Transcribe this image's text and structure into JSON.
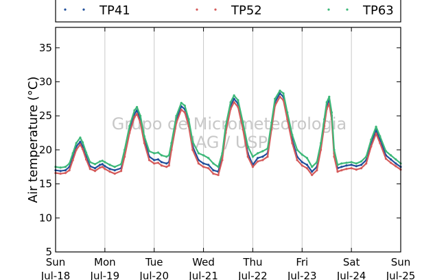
{
  "chart_data": {
    "type": "line",
    "title": "",
    "xlabel": "",
    "ylabel": "Air temperature (°C)",
    "ylim": [
      5,
      38
    ],
    "xlim": [
      0,
      7
    ],
    "grid": "vertical-only",
    "legend": "top",
    "yticks": [
      5,
      10,
      15,
      20,
      25,
      30,
      35
    ],
    "xticks": [
      {
        "x": 0,
        "day": "Sun",
        "date": "Jul-18"
      },
      {
        "x": 1,
        "day": "Mon",
        "date": "Jul-19"
      },
      {
        "x": 2,
        "day": "Tue",
        "date": "Jul-20"
      },
      {
        "x": 3,
        "day": "Wed",
        "date": "Jul-21"
      },
      {
        "x": 4,
        "day": "Thu",
        "date": "Jul-22"
      },
      {
        "x": 5,
        "day": "Fri",
        "date": "Jul-23"
      },
      {
        "x": 6,
        "day": "Sat",
        "date": "Jul-24"
      },
      {
        "x": 7,
        "day": "Sun",
        "date": "Jul-25"
      }
    ],
    "watermark": [
      "Grupo de Micrometeorologia",
      "IAG / USP"
    ],
    "series": [
      {
        "name": "TP41",
        "color": "#1f4e9a",
        "points": [
          [
            0,
            17.0
          ],
          [
            0.1,
            16.9
          ],
          [
            0.2,
            17.0
          ],
          [
            0.28,
            17.5
          ],
          [
            0.35,
            19.0
          ],
          [
            0.42,
            20.5
          ],
          [
            0.5,
            21.2
          ],
          [
            0.55,
            20.5
          ],
          [
            0.62,
            19.0
          ],
          [
            0.7,
            17.6
          ],
          [
            0.8,
            17.3
          ],
          [
            0.9,
            17.8
          ],
          [
            0.95,
            17.9
          ],
          [
            1.0,
            17.6
          ],
          [
            1.1,
            17.2
          ],
          [
            1.2,
            17.0
          ],
          [
            1.33,
            17.3
          ],
          [
            1.4,
            19.5
          ],
          [
            1.5,
            23.0
          ],
          [
            1.6,
            25.3
          ],
          [
            1.65,
            25.8
          ],
          [
            1.72,
            24.5
          ],
          [
            1.8,
            21.5
          ],
          [
            1.9,
            19.0
          ],
          [
            2.0,
            18.5
          ],
          [
            2.08,
            18.6
          ],
          [
            2.15,
            18.2
          ],
          [
            2.25,
            18.0
          ],
          [
            2.3,
            18.2
          ],
          [
            2.35,
            20.5
          ],
          [
            2.45,
            24.5
          ],
          [
            2.55,
            26.4
          ],
          [
            2.62,
            26.0
          ],
          [
            2.7,
            24.0
          ],
          [
            2.78,
            20.5
          ],
          [
            2.9,
            18.5
          ],
          [
            3.0,
            18.0
          ],
          [
            3.1,
            17.8
          ],
          [
            3.2,
            17.0
          ],
          [
            3.3,
            16.8
          ],
          [
            3.38,
            19.0
          ],
          [
            3.45,
            23.0
          ],
          [
            3.55,
            26.5
          ],
          [
            3.62,
            27.5
          ],
          [
            3.7,
            26.8
          ],
          [
            3.8,
            23.5
          ],
          [
            3.9,
            19.5
          ],
          [
            4.0,
            17.8
          ],
          [
            4.1,
            18.8
          ],
          [
            4.2,
            19.0
          ],
          [
            4.3,
            19.5
          ],
          [
            4.38,
            23.5
          ],
          [
            4.45,
            27.0
          ],
          [
            4.55,
            28.3
          ],
          [
            4.62,
            27.8
          ],
          [
            4.7,
            25.0
          ],
          [
            4.8,
            21.5
          ],
          [
            4.9,
            19.0
          ],
          [
            5.0,
            18.2
          ],
          [
            5.1,
            17.8
          ],
          [
            5.2,
            16.8
          ],
          [
            5.3,
            17.5
          ],
          [
            5.38,
            20.5
          ],
          [
            5.45,
            24.0
          ],
          [
            5.5,
            26.5
          ],
          [
            5.55,
            27.3
          ],
          [
            5.6,
            25.0
          ],
          [
            5.65,
            19.5
          ],
          [
            5.72,
            17.3
          ],
          [
            5.8,
            17.5
          ],
          [
            5.9,
            17.7
          ],
          [
            6.0,
            17.8
          ],
          [
            6.1,
            17.6
          ],
          [
            6.2,
            17.8
          ],
          [
            6.3,
            18.5
          ],
          [
            6.4,
            21.0
          ],
          [
            6.5,
            22.9
          ],
          [
            6.58,
            21.5
          ],
          [
            6.7,
            19.2
          ],
          [
            6.8,
            18.6
          ],
          [
            6.9,
            18.0
          ],
          [
            7.0,
            17.5
          ]
        ]
      },
      {
        "name": "TP52",
        "color": "#d45a5a",
        "points": [
          [
            0,
            16.6
          ],
          [
            0.1,
            16.5
          ],
          [
            0.2,
            16.6
          ],
          [
            0.28,
            17.0
          ],
          [
            0.35,
            18.5
          ],
          [
            0.42,
            20.0
          ],
          [
            0.5,
            20.8
          ],
          [
            0.55,
            20.1
          ],
          [
            0.62,
            18.6
          ],
          [
            0.7,
            17.2
          ],
          [
            0.8,
            16.9
          ],
          [
            0.9,
            17.4
          ],
          [
            0.95,
            17.5
          ],
          [
            1.0,
            17.2
          ],
          [
            1.1,
            16.8
          ],
          [
            1.2,
            16.5
          ],
          [
            1.33,
            16.9
          ],
          [
            1.4,
            19.0
          ],
          [
            1.5,
            22.5
          ],
          [
            1.6,
            24.8
          ],
          [
            1.65,
            25.3
          ],
          [
            1.72,
            24.0
          ],
          [
            1.8,
            21.0
          ],
          [
            1.9,
            18.5
          ],
          [
            2.0,
            18.0
          ],
          [
            2.08,
            18.1
          ],
          [
            2.15,
            17.7
          ],
          [
            2.25,
            17.5
          ],
          [
            2.3,
            17.7
          ],
          [
            2.35,
            20.0
          ],
          [
            2.45,
            24.0
          ],
          [
            2.55,
            25.9
          ],
          [
            2.62,
            25.5
          ],
          [
            2.7,
            23.5
          ],
          [
            2.78,
            20.0
          ],
          [
            2.9,
            18.0
          ],
          [
            3.0,
            17.5
          ],
          [
            3.1,
            17.3
          ],
          [
            3.2,
            16.5
          ],
          [
            3.3,
            16.3
          ],
          [
            3.38,
            18.5
          ],
          [
            3.45,
            22.5
          ],
          [
            3.55,
            26.0
          ],
          [
            3.62,
            27.0
          ],
          [
            3.7,
            26.3
          ],
          [
            3.8,
            23.0
          ],
          [
            3.9,
            19.0
          ],
          [
            4.0,
            17.5
          ],
          [
            4.1,
            18.3
          ],
          [
            4.2,
            18.5
          ],
          [
            4.3,
            19.0
          ],
          [
            4.38,
            23.0
          ],
          [
            4.45,
            26.5
          ],
          [
            4.55,
            27.8
          ],
          [
            4.62,
            27.3
          ],
          [
            4.7,
            24.5
          ],
          [
            4.8,
            21.0
          ],
          [
            4.9,
            18.5
          ],
          [
            5.0,
            17.7
          ],
          [
            5.1,
            17.3
          ],
          [
            5.2,
            16.3
          ],
          [
            5.3,
            17.0
          ],
          [
            5.38,
            20.0
          ],
          [
            5.45,
            23.5
          ],
          [
            5.5,
            26.0
          ],
          [
            5.55,
            26.8
          ],
          [
            5.6,
            24.5
          ],
          [
            5.65,
            19.0
          ],
          [
            5.72,
            16.8
          ],
          [
            5.8,
            17.0
          ],
          [
            5.9,
            17.2
          ],
          [
            6.0,
            17.3
          ],
          [
            6.1,
            17.1
          ],
          [
            6.2,
            17.3
          ],
          [
            6.3,
            18.0
          ],
          [
            6.4,
            20.5
          ],
          [
            6.5,
            22.4
          ],
          [
            6.58,
            21.0
          ],
          [
            6.7,
            18.7
          ],
          [
            6.8,
            18.1
          ],
          [
            6.9,
            17.6
          ],
          [
            7.0,
            17.1
          ]
        ]
      },
      {
        "name": "TP63",
        "color": "#3cb878",
        "points": [
          [
            0,
            17.5
          ],
          [
            0.1,
            17.4
          ],
          [
            0.2,
            17.5
          ],
          [
            0.28,
            18.0
          ],
          [
            0.35,
            19.5
          ],
          [
            0.42,
            21.0
          ],
          [
            0.5,
            21.8
          ],
          [
            0.55,
            21.1
          ],
          [
            0.62,
            19.6
          ],
          [
            0.7,
            18.2
          ],
          [
            0.8,
            17.9
          ],
          [
            0.9,
            18.3
          ],
          [
            0.95,
            18.4
          ],
          [
            1.0,
            18.2
          ],
          [
            1.1,
            17.8
          ],
          [
            1.2,
            17.5
          ],
          [
            1.33,
            17.9
          ],
          [
            1.4,
            20.0
          ],
          [
            1.5,
            23.5
          ],
          [
            1.6,
            25.8
          ],
          [
            1.65,
            26.3
          ],
          [
            1.72,
            25.0
          ],
          [
            1.8,
            22.0
          ],
          [
            1.9,
            19.8
          ],
          [
            2.0,
            19.5
          ],
          [
            2.08,
            19.6
          ],
          [
            2.15,
            19.2
          ],
          [
            2.25,
            19.0
          ],
          [
            2.3,
            19.2
          ],
          [
            2.35,
            21.0
          ],
          [
            2.45,
            25.0
          ],
          [
            2.55,
            26.9
          ],
          [
            2.62,
            26.5
          ],
          [
            2.7,
            24.5
          ],
          [
            2.78,
            21.2
          ],
          [
            2.9,
            19.5
          ],
          [
            3.0,
            19.2
          ],
          [
            3.1,
            18.8
          ],
          [
            3.2,
            18.0
          ],
          [
            3.3,
            17.5
          ],
          [
            3.38,
            19.5
          ],
          [
            3.45,
            23.5
          ],
          [
            3.55,
            27.0
          ],
          [
            3.62,
            28.0
          ],
          [
            3.7,
            27.3
          ],
          [
            3.8,
            24.0
          ],
          [
            3.9,
            20.5
          ],
          [
            4.0,
            19.0
          ],
          [
            4.1,
            19.5
          ],
          [
            4.2,
            19.8
          ],
          [
            4.3,
            20.2
          ],
          [
            4.38,
            24.0
          ],
          [
            4.45,
            27.5
          ],
          [
            4.55,
            28.7
          ],
          [
            4.62,
            28.3
          ],
          [
            4.7,
            25.5
          ],
          [
            4.8,
            22.2
          ],
          [
            4.9,
            20.0
          ],
          [
            5.0,
            19.3
          ],
          [
            5.1,
            18.8
          ],
          [
            5.2,
            17.5
          ],
          [
            5.3,
            18.2
          ],
          [
            5.38,
            21.0
          ],
          [
            5.45,
            24.5
          ],
          [
            5.5,
            27.0
          ],
          [
            5.55,
            27.8
          ],
          [
            5.6,
            25.5
          ],
          [
            5.65,
            20.0
          ],
          [
            5.72,
            17.8
          ],
          [
            5.8,
            18.0
          ],
          [
            5.9,
            18.1
          ],
          [
            6.0,
            18.2
          ],
          [
            6.1,
            18.0
          ],
          [
            6.2,
            18.3
          ],
          [
            6.3,
            19.0
          ],
          [
            6.4,
            21.5
          ],
          [
            6.5,
            23.4
          ],
          [
            6.58,
            22.0
          ],
          [
            6.7,
            19.8
          ],
          [
            6.8,
            19.2
          ],
          [
            6.9,
            18.6
          ],
          [
            7.0,
            18.0
          ]
        ]
      }
    ]
  }
}
